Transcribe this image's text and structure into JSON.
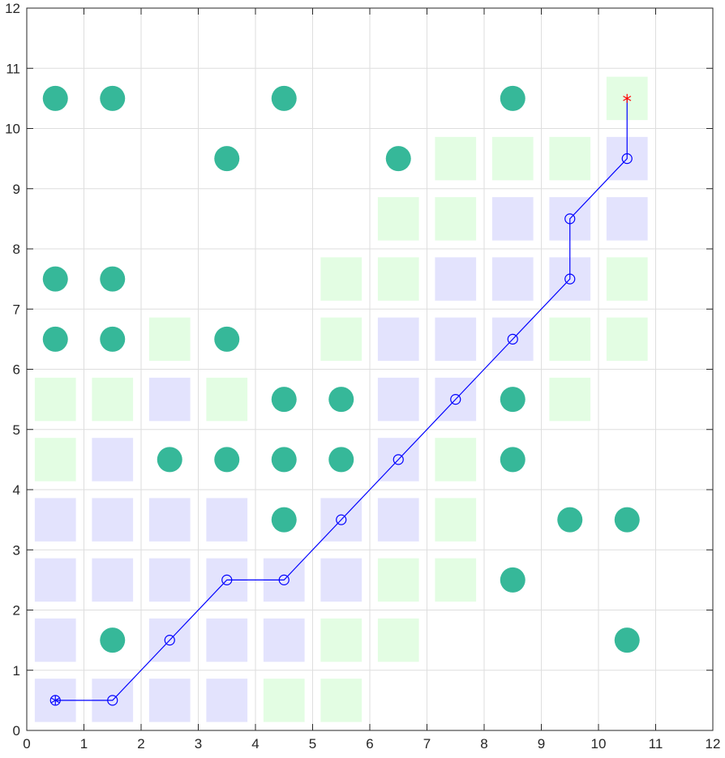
{
  "chart_data": {
    "type": "scatter",
    "title": "",
    "xlabel": "",
    "ylabel": "",
    "xlim": [
      0,
      12
    ],
    "ylim": [
      0,
      12
    ],
    "xticks": [
      "0",
      "1",
      "2",
      "3",
      "4",
      "5",
      "6",
      "7",
      "8",
      "9",
      "10",
      "11",
      "12"
    ],
    "yticks": [
      "0",
      "1",
      "2",
      "3",
      "4",
      "5",
      "6",
      "7",
      "8",
      "9",
      "10",
      "11",
      "12"
    ],
    "grid": true,
    "colors": {
      "obstacle": "#36b899",
      "open_cell": "#e3fde3",
      "closed_cell": "#e3e3fd",
      "path": "#0000ff",
      "start_marker": "#0000ff",
      "goal_marker": "#ff0000",
      "grid": "#dedede",
      "axis": "#262626"
    },
    "obstacles": [
      [
        0.5,
        10.5
      ],
      [
        1.5,
        10.5
      ],
      [
        4.5,
        10.5
      ],
      [
        8.5,
        10.5
      ],
      [
        3.5,
        9.5
      ],
      [
        6.5,
        9.5
      ],
      [
        0.5,
        7.5
      ],
      [
        1.5,
        7.5
      ],
      [
        0.5,
        6.5
      ],
      [
        1.5,
        6.5
      ],
      [
        3.5,
        6.5
      ],
      [
        4.5,
        5.5
      ],
      [
        5.5,
        5.5
      ],
      [
        8.5,
        5.5
      ],
      [
        2.5,
        4.5
      ],
      [
        3.5,
        4.5
      ],
      [
        4.5,
        4.5
      ],
      [
        5.5,
        4.5
      ],
      [
        8.5,
        4.5
      ],
      [
        4.5,
        3.5
      ],
      [
        9.5,
        3.5
      ],
      [
        10.5,
        3.5
      ],
      [
        8.5,
        2.5
      ],
      [
        1.5,
        1.5
      ],
      [
        10.5,
        1.5
      ]
    ],
    "open_cells": [
      [
        10.5,
        10.5
      ],
      [
        7.5,
        9.5
      ],
      [
        8.5,
        9.5
      ],
      [
        9.5,
        9.5
      ],
      [
        6.5,
        8.5
      ],
      [
        7.5,
        8.5
      ],
      [
        5.5,
        7.5
      ],
      [
        6.5,
        7.5
      ],
      [
        10.5,
        7.5
      ],
      [
        2.5,
        6.5
      ],
      [
        5.5,
        6.5
      ],
      [
        9.5,
        6.5
      ],
      [
        10.5,
        6.5
      ],
      [
        0.5,
        5.5
      ],
      [
        1.5,
        5.5
      ],
      [
        3.5,
        5.5
      ],
      [
        9.5,
        5.5
      ],
      [
        0.5,
        4.5
      ],
      [
        7.5,
        4.5
      ],
      [
        7.5,
        3.5
      ],
      [
        6.5,
        2.5
      ],
      [
        7.5,
        2.5
      ],
      [
        5.5,
        1.5
      ],
      [
        6.5,
        1.5
      ],
      [
        4.5,
        0.5
      ],
      [
        5.5,
        0.5
      ]
    ],
    "closed_cells": [
      [
        10.5,
        9.5
      ],
      [
        8.5,
        8.5
      ],
      [
        9.5,
        8.5
      ],
      [
        10.5,
        8.5
      ],
      [
        7.5,
        7.5
      ],
      [
        8.5,
        7.5
      ],
      [
        9.5,
        7.5
      ],
      [
        6.5,
        6.5
      ],
      [
        7.5,
        6.5
      ],
      [
        8.5,
        6.5
      ],
      [
        2.5,
        5.5
      ],
      [
        6.5,
        5.5
      ],
      [
        7.5,
        5.5
      ],
      [
        1.5,
        4.5
      ],
      [
        6.5,
        4.5
      ],
      [
        0.5,
        3.5
      ],
      [
        1.5,
        3.5
      ],
      [
        2.5,
        3.5
      ],
      [
        3.5,
        3.5
      ],
      [
        5.5,
        3.5
      ],
      [
        6.5,
        3.5
      ],
      [
        0.5,
        2.5
      ],
      [
        1.5,
        2.5
      ],
      [
        2.5,
        2.5
      ],
      [
        3.5,
        2.5
      ],
      [
        4.5,
        2.5
      ],
      [
        5.5,
        2.5
      ],
      [
        0.5,
        1.5
      ],
      [
        2.5,
        1.5
      ],
      [
        3.5,
        1.5
      ],
      [
        4.5,
        1.5
      ],
      [
        0.5,
        0.5
      ],
      [
        1.5,
        0.5
      ],
      [
        2.5,
        0.5
      ],
      [
        3.5,
        0.5
      ]
    ],
    "path": [
      [
        0.5,
        0.5
      ],
      [
        1.5,
        0.5
      ],
      [
        2.5,
        1.5
      ],
      [
        3.5,
        2.5
      ],
      [
        4.5,
        2.5
      ],
      [
        5.5,
        3.5
      ],
      [
        6.5,
        4.5
      ],
      [
        7.5,
        5.5
      ],
      [
        8.5,
        6.5
      ],
      [
        9.5,
        7.5
      ],
      [
        9.5,
        8.5
      ],
      [
        10.5,
        9.5
      ],
      [
        10.5,
        10.5
      ]
    ],
    "start": [
      0.5,
      0.5
    ],
    "goal": [
      10.5,
      10.5
    ]
  }
}
